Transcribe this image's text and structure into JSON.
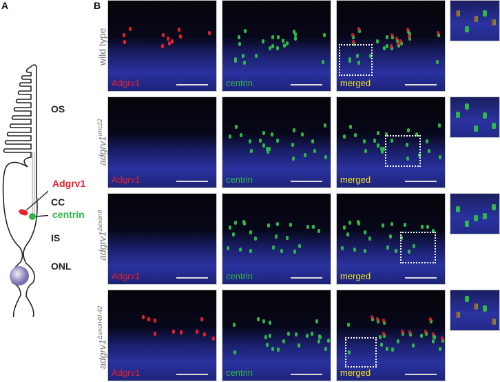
{
  "panel_a": {
    "label": "A",
    "regions": {
      "os": "OS",
      "cc": "CC",
      "is": "IS",
      "onl": "ONL"
    },
    "markers": {
      "adgrv1": "Adgrv1",
      "centrin": "centrin"
    }
  },
  "panel_b": {
    "label": "B",
    "rows": [
      {
        "genotype": "wild type",
        "sup": "",
        "adgrv1_signal": true
      },
      {
        "genotype": "adgrv1",
        "sup": "rmc22",
        "adgrv1_signal": false
      },
      {
        "genotype": "adgrv1",
        "sup": "Δexon9",
        "adgrv1_signal": false
      },
      {
        "genotype": "adgrv1",
        "sup": "Δexon40-42",
        "adgrv1_signal": true
      }
    ],
    "channels": [
      "Adgrv1",
      "centrin",
      "merged"
    ]
  },
  "colors": {
    "adgrv1": "#e8202a",
    "centrin": "#2fb84a",
    "merged": "#f0e020",
    "dapi": "#2a32a0"
  }
}
